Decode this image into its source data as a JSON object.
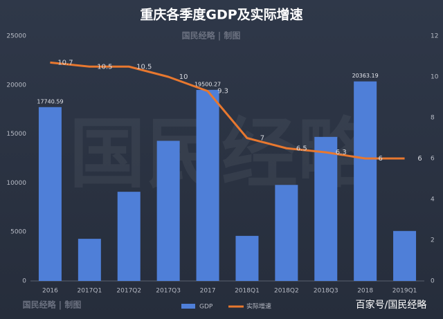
{
  "chart_data": {
    "type": "bar",
    "title": "重庆各季度GDP及实际增速",
    "watermark": "国民经略 | 制图",
    "background_watermark": "国民经略",
    "source": "百家号/国民经略",
    "categories": [
      "2016",
      "2017Q1",
      "2017Q2",
      "2017Q3",
      "2017",
      "2018Q1",
      "2018Q2",
      "2018Q3",
      "2018",
      "2019Q1"
    ],
    "series": [
      {
        "name": "GDP",
        "type": "bar",
        "color": "#4f7fd8",
        "values": [
          17740.59,
          4300,
          9100,
          14300,
          19500.27,
          4600,
          9800,
          14700,
          20363.19,
          5100
        ],
        "value_labels": [
          "17740.59",
          null,
          null,
          null,
          "19500.27",
          null,
          null,
          null,
          "20363.19",
          null
        ]
      },
      {
        "name": "实际增速",
        "type": "line",
        "color": "#e8782f",
        "axis": "y2",
        "values": [
          10.7,
          10.5,
          10.5,
          10,
          9.3,
          7,
          6.5,
          6.3,
          6,
          6
        ]
      }
    ],
    "ylim": [
      0,
      25000
    ],
    "yticks": [
      0,
      5000,
      10000,
      15000,
      20000,
      25000
    ],
    "y2lim": [
      0,
      12
    ],
    "y2ticks": [
      0,
      2,
      4,
      6,
      8,
      10,
      12
    ],
    "grid": false,
    "legend": "bottom"
  }
}
